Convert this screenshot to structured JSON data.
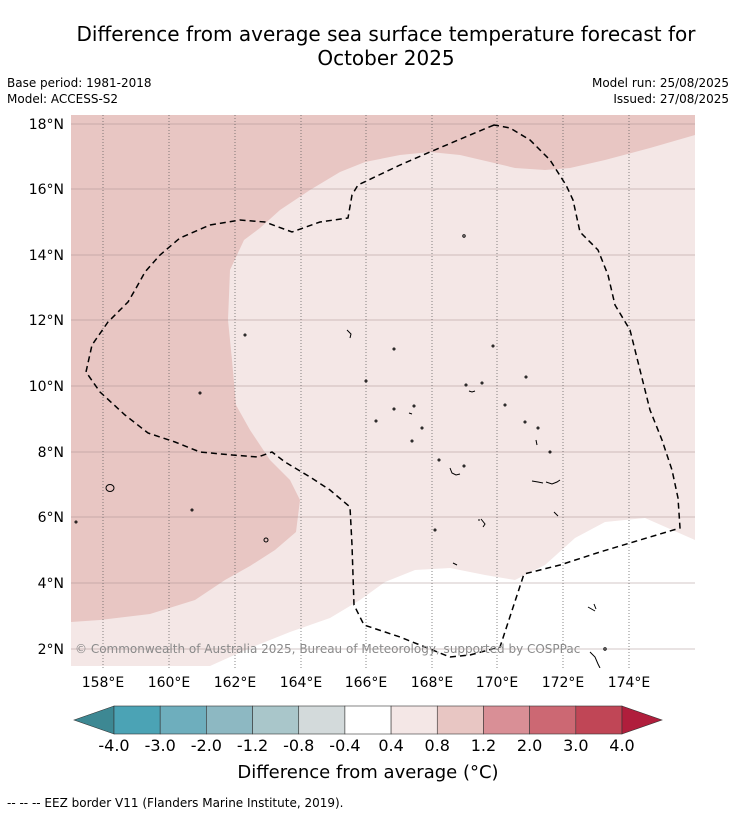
{
  "title_line1": "Difference from average sea surface temperature forecast for",
  "title_line2": "October 2025",
  "meta_left": {
    "base_period": "Base period: 1981-2018",
    "model": "Model: ACCESS-S2"
  },
  "meta_right": {
    "model_run": "Model run: 25/08/2025",
    "issued": "Issued: 27/08/2025"
  },
  "map": {
    "lat_labels": [
      "18°N",
      "16°N",
      "14°N",
      "12°N",
      "10°N",
      "8°N",
      "6°N",
      "4°N",
      "2°N"
    ],
    "lon_labels": [
      "158°E",
      "160°E",
      "162°E",
      "164°E",
      "166°E",
      "168°E",
      "170°E",
      "172°E",
      "174°E"
    ],
    "copyright": "© Commonwealth of Australia 2025, Bureau of Meteorology, supported by COSPPac",
    "colors": {
      "band_0_4_0_8": "#f4e7e6",
      "band_0_8_1_2": "#e8c6c3",
      "land_line": "#000000"
    }
  },
  "colorbar": {
    "labels": [
      "-4.0",
      "-3.0",
      "-2.0",
      "-1.2",
      "-0.8",
      "-0.4",
      "0.4",
      "0.8",
      "1.2",
      "2.0",
      "3.0",
      "4.0"
    ],
    "colors": [
      "#4ba3b5",
      "#6eaebd",
      "#8db8c2",
      "#a9c6ca",
      "#d3dadb",
      "#ffffff",
      "#f4e7e6",
      "#e8c6c3",
      "#d98f96",
      "#cc6873",
      "#c04656"
    ],
    "under_color": "#3d8893",
    "over_color": "#b01e3c",
    "title": "Difference from average (°C)"
  },
  "footer": "--  --  -- EEZ border V11 (Flanders Marine Institute, 2019)."
}
